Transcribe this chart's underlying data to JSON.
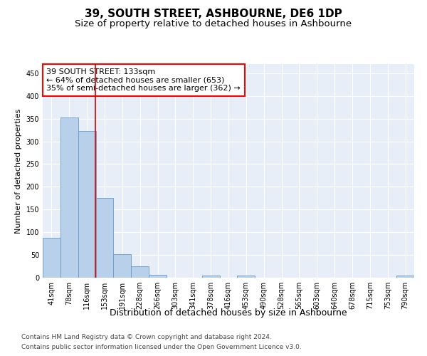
{
  "title": "39, SOUTH STREET, ASHBOURNE, DE6 1DP",
  "subtitle": "Size of property relative to detached houses in Ashbourne",
  "xlabel": "Distribution of detached houses by size in Ashbourne",
  "ylabel": "Number of detached properties",
  "bar_labels": [
    "41sqm",
    "78sqm",
    "116sqm",
    "153sqm",
    "191sqm",
    "228sqm",
    "266sqm",
    "303sqm",
    "341sqm",
    "378sqm",
    "416sqm",
    "453sqm",
    "490sqm",
    "528sqm",
    "565sqm",
    "603sqm",
    "640sqm",
    "678sqm",
    "715sqm",
    "753sqm",
    "790sqm"
  ],
  "bar_values": [
    88,
    353,
    323,
    175,
    52,
    25,
    7,
    0,
    0,
    4,
    0,
    4,
    0,
    0,
    0,
    0,
    0,
    0,
    0,
    0,
    4
  ],
  "bar_color": "#b8d0ea",
  "bar_edge_color": "#6699cc",
  "bar_width": 1.0,
  "ylim": [
    0,
    470
  ],
  "yticks": [
    0,
    50,
    100,
    150,
    200,
    250,
    300,
    350,
    400,
    450
  ],
  "vline_x": 2.46,
  "vline_color": "#cc0000",
  "annotation_box_text": "39 SOUTH STREET: 133sqm\n← 64% of detached houses are smaller (653)\n35% of semi-detached houses are larger (362) →",
  "footer_line1": "Contains HM Land Registry data © Crown copyright and database right 2024.",
  "footer_line2": "Contains public sector information licensed under the Open Government Licence v3.0.",
  "background_color": "#e8eef8",
  "grid_color": "#ffffff",
  "title_fontsize": 11,
  "subtitle_fontsize": 9.5,
  "xlabel_fontsize": 9,
  "ylabel_fontsize": 8,
  "tick_fontsize": 7,
  "annotation_fontsize": 8,
  "footer_fontsize": 6.5
}
